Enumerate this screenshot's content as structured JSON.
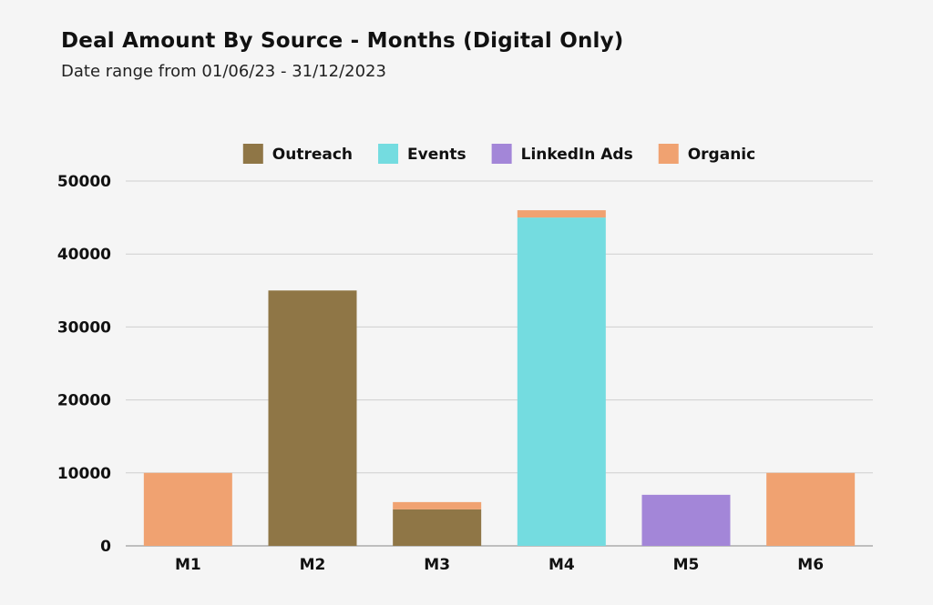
{
  "chart_data": {
    "type": "bar",
    "stacked": true,
    "title": "Deal Amount By Source - Months (Digital Only)",
    "subtitle": "Date range from 01/06/23 - 31/12/2023",
    "xlabel": "",
    "ylabel": "",
    "categories": [
      "M1",
      "M2",
      "M3",
      "M4",
      "M5",
      "M6"
    ],
    "series": [
      {
        "name": "Outreach",
        "color": "#8f7646",
        "values": [
          0,
          35000,
          5000,
          0,
          0,
          0
        ]
      },
      {
        "name": "Events",
        "color": "#74dce0",
        "values": [
          0,
          0,
          0,
          45000,
          0,
          0
        ]
      },
      {
        "name": "LinkedIn Ads",
        "color": "#a386d8",
        "values": [
          0,
          0,
          0,
          0,
          7000,
          0
        ]
      },
      {
        "name": "Organic",
        "color": "#f0a271",
        "values": [
          10000,
          0,
          1000,
          1000,
          0,
          10000
        ]
      }
    ],
    "ylim": [
      0,
      50000
    ],
    "yticks": [
      "0",
      "10000",
      "20000",
      "30000",
      "40000",
      "50000"
    ],
    "grid": true,
    "legend_position": "top"
  }
}
